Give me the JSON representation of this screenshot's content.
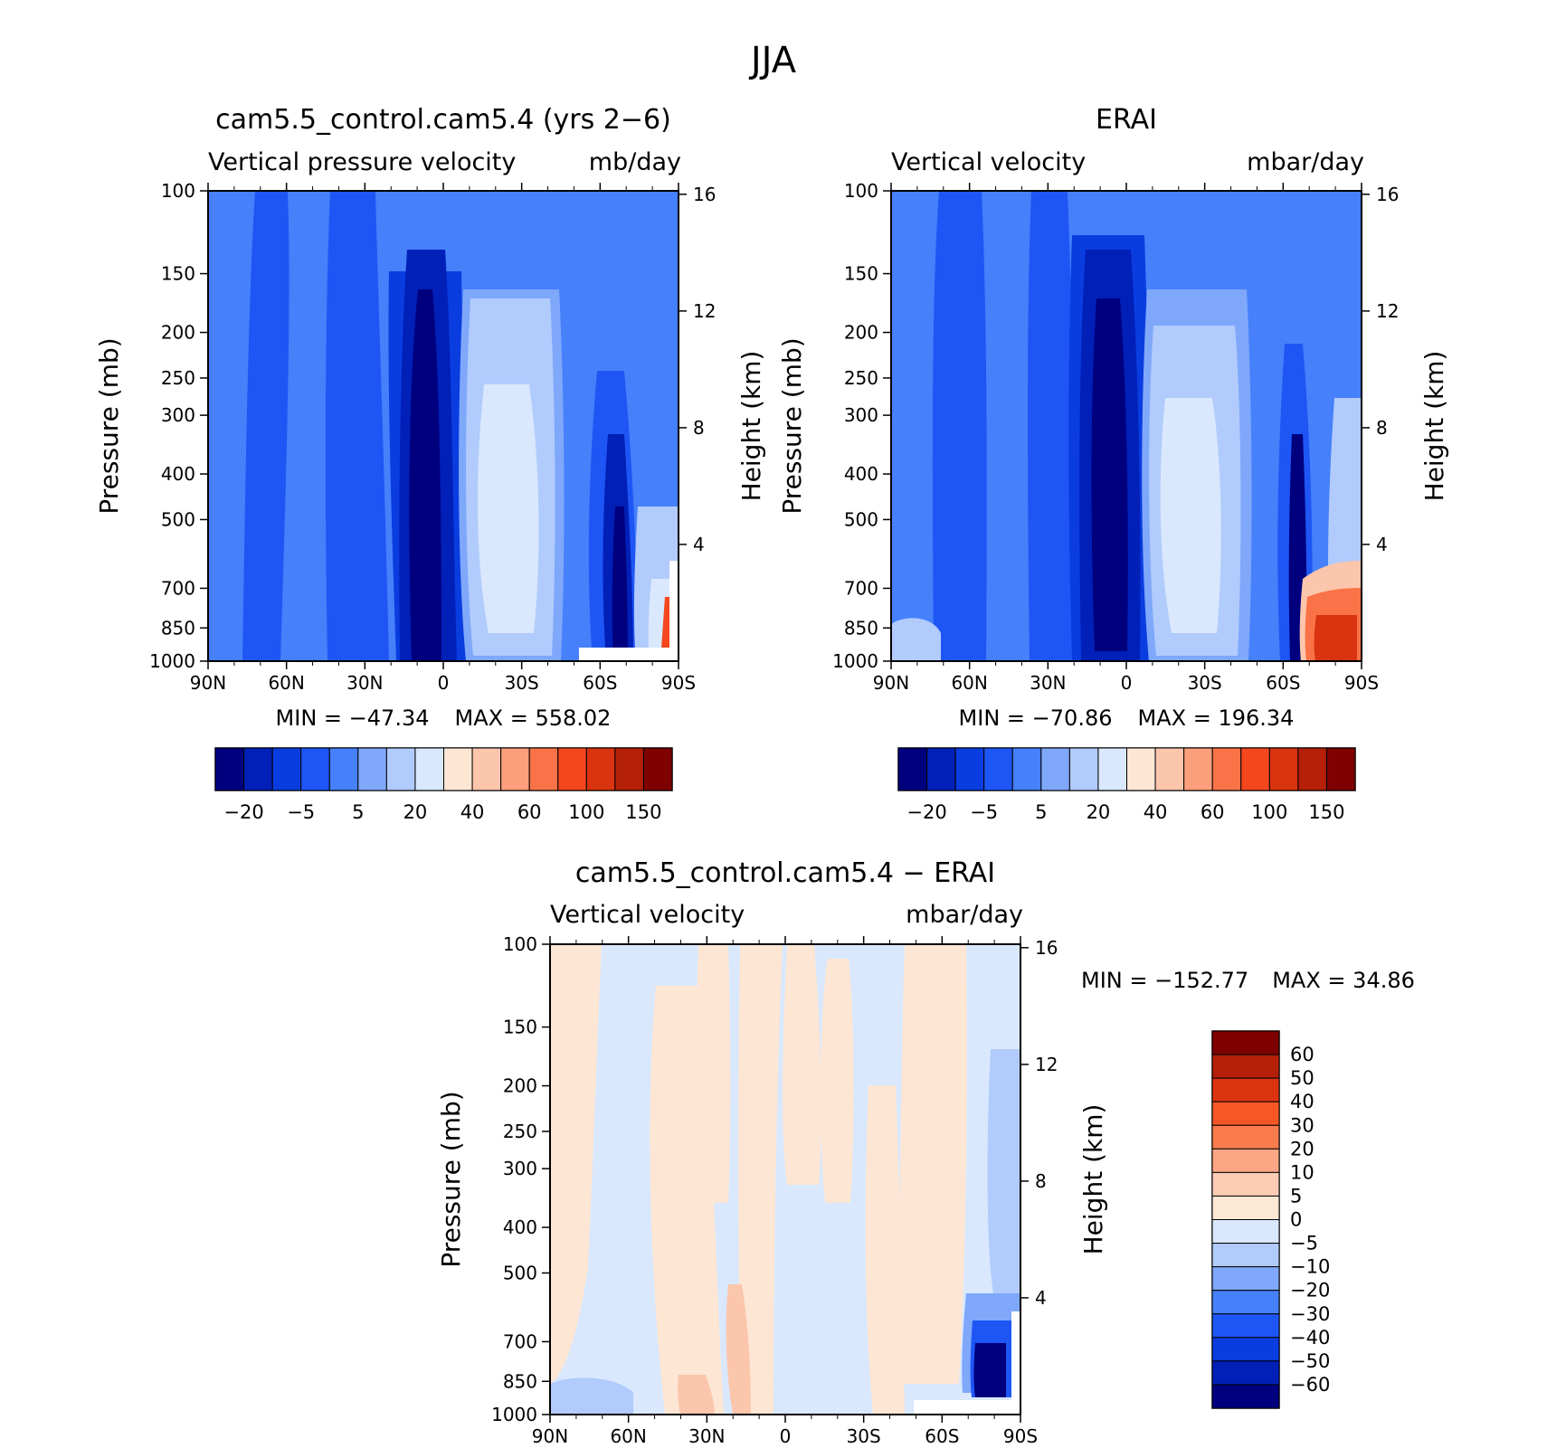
{
  "figure": {
    "title": "JJA"
  },
  "panels": [
    {
      "id": "model",
      "title": "cam5.5_control.cam5.4 (yrs 2−6)",
      "left_label": "Vertical pressure velocity",
      "right_label": "mb/day",
      "min_label": "MIN",
      "min_value": "−47.34",
      "max_label": "MAX",
      "max_value": "558.02",
      "ylabel": "Pressure (mb)",
      "y2label": "Height (km)"
    },
    {
      "id": "obs",
      "title": "ERAI",
      "left_label": "Vertical velocity",
      "right_label": "mbar/day",
      "min_label": "MIN",
      "min_value": "−70.86",
      "max_label": "MAX",
      "max_value": "196.34",
      "ylabel": "Pressure (mb)",
      "y2label": "Height (km)"
    },
    {
      "id": "diff",
      "title": "cam5.5_control.cam5.4 − ERAI",
      "left_label": "Vertical velocity",
      "right_label": "mbar/day",
      "min_label": "MIN",
      "min_value": "−152.77",
      "max_label": "MAX",
      "max_value": "34.86",
      "ylabel": "Pressure (mb)",
      "y2label": "Height (km)"
    }
  ],
  "chart_data": [
    {
      "type": "heatmap",
      "title": "cam5.5_control.cam5.4 (yrs 2−6)",
      "variable": "Vertical pressure velocity",
      "units": "mb/day",
      "x_ticks": [
        "90N",
        "60N",
        "30N",
        "0",
        "30S",
        "60S",
        "90S"
      ],
      "x_range": [
        90,
        -90
      ],
      "y_ticks": [
        100,
        150,
        200,
        250,
        300,
        400,
        500,
        700,
        850,
        1000
      ],
      "y_range": [
        100,
        1000
      ],
      "y_scale": "log",
      "y2_ticks": [
        4,
        8,
        12,
        16
      ],
      "min": -47.34,
      "max": 558.02,
      "colorbar_levels": [
        "−20",
        "−5",
        "5",
        "20",
        "40",
        "60",
        "100",
        "150"
      ],
      "colorbar_colors": [
        "#00007f",
        "#0020b8",
        "#0a3de0",
        "#1e56f5",
        "#4680fa",
        "#7fa8fb",
        "#b1cbfc",
        "#d9e8fd",
        "#fde6d4",
        "#fcc6ac",
        "#fb9f7c",
        "#fa7348",
        "#f4471e",
        "#d93310",
        "#b42008",
        "#7f0000"
      ],
      "colorbar_orientation": "horizontal"
    },
    {
      "type": "heatmap",
      "title": "ERAI",
      "variable": "Vertical velocity",
      "units": "mbar/day",
      "x_ticks": [
        "90N",
        "60N",
        "30N",
        "0",
        "30S",
        "60S",
        "90S"
      ],
      "x_range": [
        90,
        -90
      ],
      "y_ticks": [
        100,
        150,
        200,
        250,
        300,
        400,
        500,
        700,
        850,
        1000
      ],
      "y_range": [
        100,
        1000
      ],
      "y_scale": "log",
      "y2_ticks": [
        4,
        8,
        12,
        16
      ],
      "min": -70.86,
      "max": 196.34,
      "colorbar_levels": [
        "−20",
        "−5",
        "5",
        "20",
        "40",
        "60",
        "100",
        "150"
      ],
      "colorbar_colors": [
        "#00007f",
        "#0020b8",
        "#0a3de0",
        "#1e56f5",
        "#4680fa",
        "#7fa8fb",
        "#b1cbfc",
        "#d9e8fd",
        "#fde6d4",
        "#fcc6ac",
        "#fb9f7c",
        "#fa7348",
        "#f4471e",
        "#d93310",
        "#b42008",
        "#7f0000"
      ],
      "colorbar_orientation": "horizontal"
    },
    {
      "type": "heatmap",
      "title": "cam5.5_control.cam5.4 − ERAI",
      "variable": "Vertical velocity",
      "units": "mbar/day",
      "x_ticks": [
        "90N",
        "60N",
        "30N",
        "0",
        "30S",
        "60S",
        "90S"
      ],
      "x_range": [
        90,
        -90
      ],
      "y_ticks": [
        100,
        150,
        200,
        250,
        300,
        400,
        500,
        700,
        850,
        1000
      ],
      "y_range": [
        100,
        1000
      ],
      "y_scale": "log",
      "y2_ticks": [
        4,
        8,
        12,
        16
      ],
      "min": -152.77,
      "max": 34.86,
      "colorbar_levels": [
        "60",
        "50",
        "40",
        "30",
        "20",
        "10",
        "5",
        "0",
        "−5",
        "−10",
        "−20",
        "−30",
        "−40",
        "−50",
        "−60"
      ],
      "colorbar_colors": [
        "#7f0000",
        "#b42008",
        "#dc3411",
        "#f65725",
        "#fa7c4d",
        "#fba785",
        "#fccdb4",
        "#fde8d6",
        "#d9e8fd",
        "#b1cbfc",
        "#7fa8fb",
        "#4680fa",
        "#1e56f5",
        "#0a3de0",
        "#0020b8",
        "#00007f"
      ],
      "colorbar_orientation": "vertical"
    }
  ]
}
